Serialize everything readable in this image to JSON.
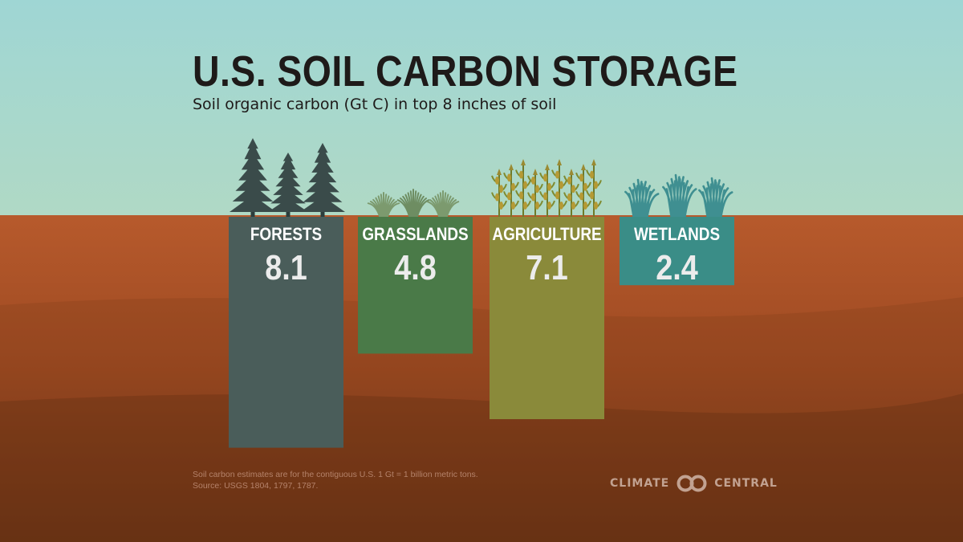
{
  "header": {
    "title": "U.S. SOIL CARBON STORAGE",
    "subtitle": "Soil organic carbon (Gt C) in top 8 inches of soil"
  },
  "chart_data": {
    "type": "bar",
    "title": "U.S. SOIL CARBON STORAGE",
    "subtitle": "Soil organic carbon (Gt C) in top 8 inches of soil",
    "ylabel": "",
    "xlabel": "",
    "categories": [
      "FORESTS",
      "GRASSLANDS",
      "AGRICULTURE",
      "WETLANDS"
    ],
    "values": [
      8.1,
      4.8,
      7.1,
      2.4
    ],
    "value_labels": [
      "8.1",
      "4.8",
      "7.1",
      "2.4"
    ],
    "orientation": "bars hang downward from the soil surface",
    "grid": false,
    "colors": [
      "#4a5d5a",
      "#4a7a48",
      "#8a8a3a",
      "#3a8d87"
    ],
    "icons": [
      "pine-trees-icon",
      "grass-tufts-icon",
      "corn-stalks-icon",
      "wetland-reeds-icon"
    ]
  },
  "footer": {
    "note_line1": "Soil carbon estimates are for the contiguous U.S. 1 Gt = 1 billion metric tons.",
    "note_line2": "Source: USGS 1804, 1797, 1787.",
    "brand_left": "CLIMATE",
    "brand_right": "CENTRAL"
  },
  "colors": {
    "sky_top": "#9fd6d4",
    "sky_bottom": "#aed8c6",
    "soil_top": "#b5592c",
    "soil_bottom": "#6a3315",
    "title": "#1e1a19",
    "label": "#ffffff",
    "value": "#ececec"
  }
}
